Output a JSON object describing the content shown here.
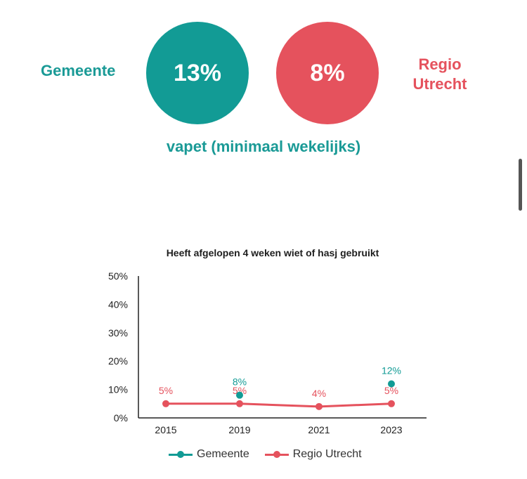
{
  "header": {
    "left_label": "Gemeente",
    "left_value": "13%",
    "right_value": "8%",
    "right_label_line1": "Regio",
    "right_label_line2": "Utrecht",
    "subtitle": "vapet (minimaal wekelijks)"
  },
  "colors": {
    "gemeente": "#129b95",
    "regio": "#e5525d"
  },
  "chart_data": {
    "type": "line",
    "title": "Heeft afgelopen 4 weken wiet of hasj gebruikt",
    "categories": [
      "2015",
      "2019",
      "2021",
      "2023"
    ],
    "yticks": [
      "50%",
      "40%",
      "30%",
      "20%",
      "10%",
      "0%"
    ],
    "ylim": [
      0,
      50
    ],
    "grid": false,
    "legend": "bottom",
    "series": [
      {
        "name": "Gemeente",
        "values": [
          null,
          8,
          null,
          12
        ],
        "labels": [
          "",
          "8%",
          "",
          "12%"
        ]
      },
      {
        "name": "Regio Utrecht",
        "values": [
          5,
          5,
          4,
          5
        ],
        "labels": [
          "5%",
          "5%",
          "4%",
          "5%"
        ]
      }
    ]
  }
}
